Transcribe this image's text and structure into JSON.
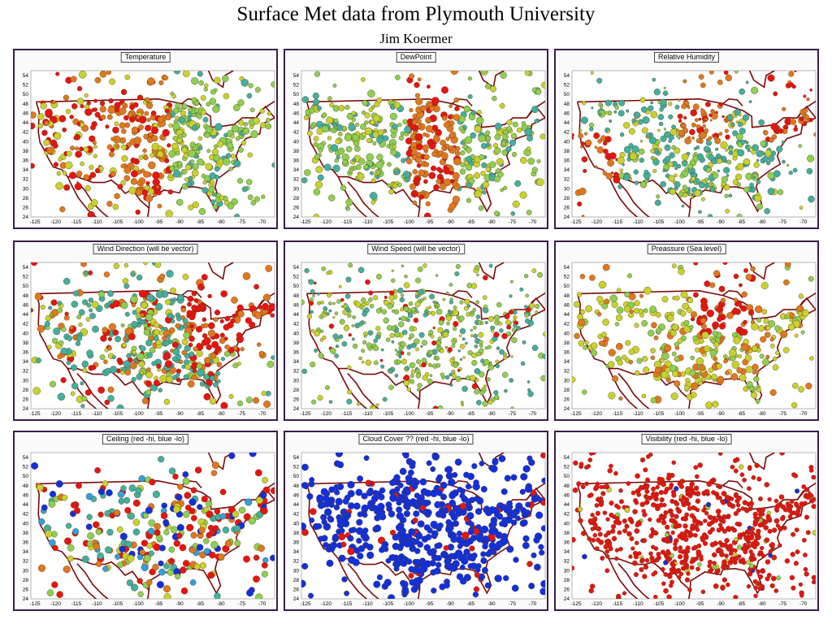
{
  "header": {
    "title": "Surface Met data from Plymouth University",
    "author": "Jim Koermer"
  },
  "chart_data": [
    {
      "type": "scatter",
      "title": "Temperature",
      "x_ticks": [
        -125,
        -120,
        -115,
        -110,
        -105,
        -100,
        -95,
        -90,
        -85,
        -80,
        -75,
        -70
      ],
      "y_ticks": [
        24,
        26,
        28,
        30,
        32,
        34,
        36,
        38,
        40,
        42,
        44,
        46,
        48,
        50,
        52,
        54
      ],
      "xlim": [
        -126,
        -67
      ],
      "ylim": [
        24,
        55
      ],
      "scheme": "mixed-west-red-east-green",
      "density": 520
    },
    {
      "type": "scatter",
      "title": "DewPoint",
      "x_ticks": [
        -125,
        -120,
        -115,
        -110,
        -105,
        -100,
        -95,
        -90,
        -85,
        -80,
        -75,
        -70
      ],
      "y_ticks": [
        24,
        26,
        28,
        30,
        32,
        34,
        36,
        38,
        40,
        42,
        44,
        46,
        48,
        50,
        52,
        54
      ],
      "xlim": [
        -126,
        -67
      ],
      "ylim": [
        24,
        55
      ],
      "scheme": "central-orange-east-green",
      "density": 520
    },
    {
      "type": "scatter",
      "title": "Relative Humidity",
      "x_ticks": [
        -125,
        -120,
        -115,
        -110,
        -105,
        -100,
        -95,
        -90,
        -85,
        -80,
        -75,
        -70
      ],
      "y_ticks": [
        24,
        26,
        28,
        30,
        32,
        34,
        36,
        38,
        40,
        42,
        44,
        46,
        48,
        50,
        52,
        54
      ],
      "xlim": [
        -126,
        -67
      ],
      "ylim": [
        24,
        55
      ],
      "scheme": "sparse-west-red-northeast",
      "density": 480
    },
    {
      "type": "scatter",
      "title": "Wind Direction (will be vector)",
      "x_ticks": [
        -125,
        -120,
        -115,
        -110,
        -105,
        -100,
        -95,
        -90,
        -85,
        -80,
        -75,
        -70
      ],
      "y_ticks": [
        24,
        26,
        28,
        30,
        32,
        34,
        36,
        38,
        40,
        42,
        44,
        46,
        48,
        50,
        52,
        54
      ],
      "xlim": [
        -126,
        -67
      ],
      "ylim": [
        24,
        55
      ],
      "scheme": "red-east-mixed",
      "density": 500
    },
    {
      "type": "scatter",
      "title": "Wind Speed (will be vector)",
      "x_ticks": [
        -125,
        -120,
        -115,
        -110,
        -105,
        -100,
        -95,
        -90,
        -85,
        -80,
        -75,
        -70
      ],
      "y_ticks": [
        24,
        26,
        28,
        30,
        32,
        34,
        36,
        38,
        40,
        42,
        44,
        46,
        48,
        50,
        52,
        54
      ],
      "xlim": [
        -126,
        -67
      ],
      "ylim": [
        24,
        55
      ],
      "scheme": "small-green-few-red",
      "density": 500
    },
    {
      "type": "scatter",
      "title": "Preassure (Sea level)",
      "x_ticks": [
        -125,
        -120,
        -115,
        -110,
        -105,
        -100,
        -95,
        -90,
        -85,
        -80,
        -75,
        -70
      ],
      "y_ticks": [
        24,
        26,
        28,
        30,
        32,
        34,
        36,
        38,
        40,
        42,
        44,
        46,
        48,
        50,
        52,
        54
      ],
      "xlim": [
        -126,
        -67
      ],
      "ylim": [
        24,
        55
      ],
      "scheme": "green-with-red-north-central",
      "density": 380
    },
    {
      "type": "scatter",
      "title": "Ceiling (red -hi, blue -lo)",
      "x_ticks": [
        -125,
        -120,
        -115,
        -110,
        -105,
        -100,
        -95,
        -90,
        -85,
        -80,
        -75,
        -70
      ],
      "y_ticks": [
        24,
        26,
        28,
        30,
        32,
        34,
        36,
        38,
        40,
        42,
        44,
        46,
        48,
        50,
        52,
        54
      ],
      "xlim": [
        -126,
        -67
      ],
      "ylim": [
        24,
        55
      ],
      "scheme": "jet-mixed",
      "density": 300
    },
    {
      "type": "scatter",
      "title": "Cloud Cover ?? (red -hi, blue -lo)",
      "x_ticks": [
        -125,
        -120,
        -115,
        -110,
        -105,
        -100,
        -95,
        -90,
        -85,
        -80,
        -75,
        -70
      ],
      "y_ticks": [
        24,
        26,
        28,
        30,
        32,
        34,
        36,
        38,
        40,
        42,
        44,
        46,
        48,
        50,
        52,
        54
      ],
      "xlim": [
        -126,
        -67
      ],
      "ylim": [
        24,
        55
      ],
      "scheme": "mostly-blue",
      "density": 560
    },
    {
      "type": "scatter",
      "title": "Visibility (red -hi, blue -lo)",
      "x_ticks": [
        -125,
        -120,
        -115,
        -110,
        -105,
        -100,
        -95,
        -90,
        -85,
        -80,
        -75,
        -70
      ],
      "y_ticks": [
        24,
        26,
        28,
        30,
        32,
        34,
        36,
        38,
        40,
        42,
        44,
        46,
        48,
        50,
        52,
        54
      ],
      "xlim": [
        -126,
        -67
      ],
      "ylim": [
        24,
        55
      ],
      "scheme": "mostly-red",
      "density": 700
    }
  ],
  "colors": {
    "frame": "#3a1d4a",
    "border": "#7a0a0a",
    "red": "#e8140f",
    "orange": "#e0781e",
    "yellow": "#c8d22d",
    "green": "#8cd050",
    "teal": "#40b0a0",
    "blue": "#1030e0",
    "lightblue": "#30a0e0"
  }
}
